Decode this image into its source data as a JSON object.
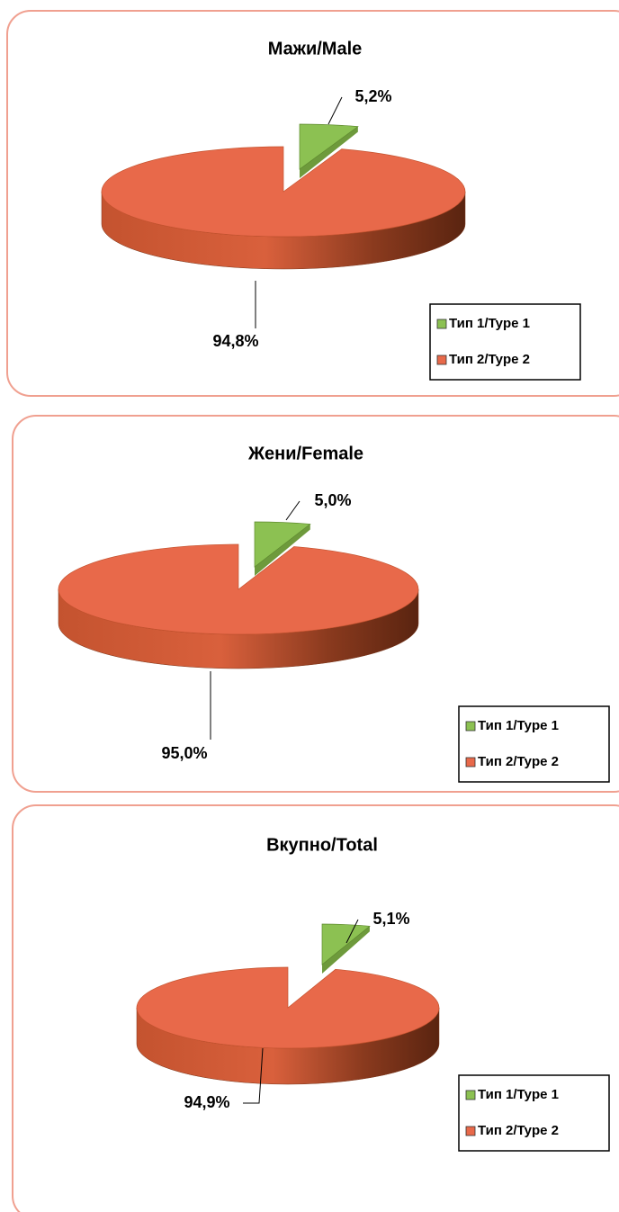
{
  "chart_data": [
    {
      "type": "pie",
      "title": "Мажи/Male",
      "categories": [
        "Тип 1/Type 1",
        "Тип 2/Type 2"
      ],
      "values": [
        5.2,
        94.8
      ],
      "value_labels": [
        "5,2%",
        "94,8%"
      ],
      "colors": [
        "#8cc152",
        "#e8694a"
      ],
      "legend": "bottom-right"
    },
    {
      "type": "pie",
      "title": "Жени/Female",
      "categories": [
        "Тип 1/Type 1",
        "Тип 2/Type 2"
      ],
      "values": [
        5.0,
        95.0
      ],
      "value_labels": [
        "5,0%",
        "95,0%"
      ],
      "colors": [
        "#8cc152",
        "#e8694a"
      ],
      "legend": "bottom-right"
    },
    {
      "type": "pie",
      "title": "Вкупно/Total",
      "categories": [
        "Тип 1/Type 1",
        "Тип 2/Type 2"
      ],
      "values": [
        5.1,
        94.9
      ],
      "value_labels": [
        "5,1%",
        "94,9%"
      ],
      "colors": [
        "#8cc152",
        "#e8694a"
      ],
      "legend": "bottom-right"
    }
  ]
}
